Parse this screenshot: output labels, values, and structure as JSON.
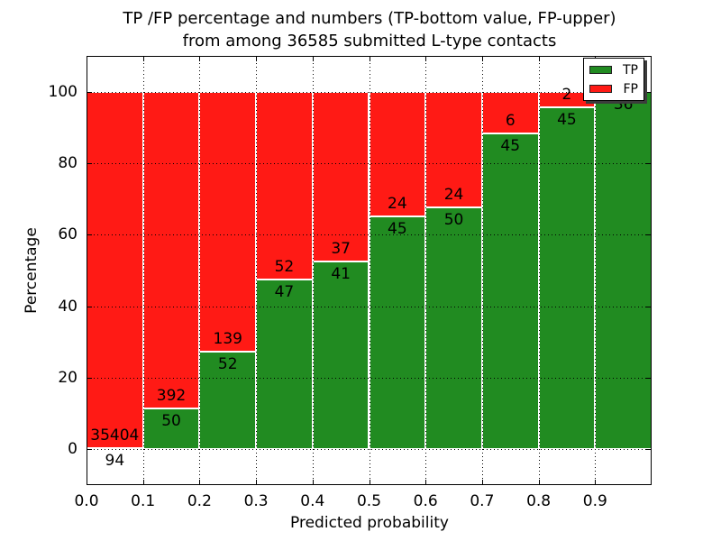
{
  "title": {
    "line1": "TP /FP percentage and numbers (TP-bottom value, FP-upper)",
    "line2": "from among 36585 submitted L-type contacts"
  },
  "axes": {
    "xlabel": "Predicted probability",
    "ylabel": "Percentage"
  },
  "legend": {
    "items": [
      {
        "label": "TP",
        "color": "#218b21"
      },
      {
        "label": "FP",
        "color": "#ff1a15"
      }
    ]
  },
  "chart_data": {
    "type": "bar",
    "stacked": true,
    "normalization": "each bin stacked to 100 percent; counts shown as labels",
    "title": "TP /FP percentage and numbers (TP-bottom value, FP-upper) from among 36585 submitted L-type contacts",
    "total_submitted": 36585,
    "xlabel": "Predicted probability",
    "ylabel": "Percentage",
    "xlim": [
      0.0,
      1.0
    ],
    "ylim": [
      -10,
      110
    ],
    "grid": "dotted",
    "legend_position": "upper right",
    "categories": [
      "0.0-0.1",
      "0.1-0.2",
      "0.2-0.3",
      "0.3-0.4",
      "0.4-0.5",
      "0.5-0.6",
      "0.6-0.7",
      "0.7-0.8",
      "0.8-0.9",
      "0.9-1.0"
    ],
    "xticks": [
      "0.0",
      "0.1",
      "0.2",
      "0.3",
      "0.4",
      "0.5",
      "0.6",
      "0.7",
      "0.8",
      "0.9"
    ],
    "yticks": [
      0,
      20,
      40,
      60,
      80,
      100
    ],
    "series": [
      {
        "name": "TP",
        "color": "#218b21",
        "values": [
          94,
          50,
          52,
          47,
          41,
          45,
          50,
          45,
          45,
          36
        ]
      },
      {
        "name": "FP",
        "color": "#ff1a15",
        "values": [
          35404,
          392,
          139,
          52,
          37,
          24,
          24,
          6,
          2,
          0
        ]
      }
    ],
    "tp_percent_per_bin": [
      0.26,
      11.31,
      27.23,
      47.47,
      52.56,
      65.22,
      67.57,
      88.24,
      95.74,
      100.0
    ],
    "fp_label_visible": [
      true,
      true,
      true,
      true,
      true,
      true,
      true,
      true,
      true,
      false
    ]
  }
}
